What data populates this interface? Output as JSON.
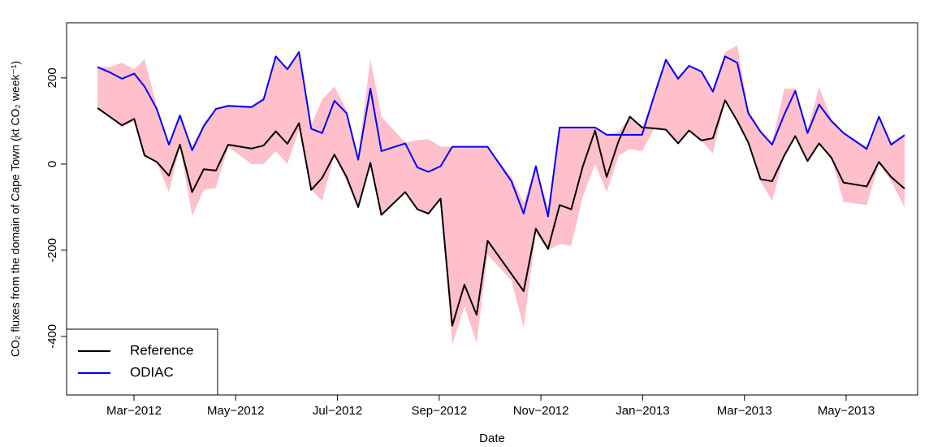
{
  "chart_data": {
    "type": "line",
    "xlabel": "Date",
    "ylabel": "CO₂ fluxes from the domain of Cape Town (kt CO₂ week⁻¹)",
    "x": [
      2012.107,
      2012.127,
      2012.147,
      2012.167,
      2012.184,
      2012.204,
      2012.224,
      2012.242,
      2012.262,
      2012.281,
      2012.301,
      2012.321,
      2012.359,
      2012.379,
      2012.399,
      2012.418,
      2012.437,
      2012.457,
      2012.475,
      2012.495,
      2012.515,
      2012.534,
      2012.554,
      2012.572,
      2012.611,
      2012.631,
      2012.649,
      2012.669,
      2012.688,
      2012.708,
      2012.728,
      2012.746,
      2012.785,
      2012.805,
      2012.825,
      2012.845,
      2012.864,
      2012.883,
      2012.902,
      2012.922,
      2012.941,
      2012.961,
      2012.979,
      2012.999,
      2013.018,
      2013.038,
      2013.058,
      2013.076,
      2013.096,
      2013.115,
      2013.135,
      2013.155,
      2013.173,
      2013.193,
      2013.212,
      2013.232,
      2013.25,
      2013.27,
      2013.289,
      2013.309,
      2013.329,
      2013.367,
      2013.387,
      2013.407,
      2013.429
    ],
    "series": [
      {
        "name": "Reference",
        "color": "#000000",
        "values": [
          130,
          110,
          90,
          105,
          20,
          5,
          -27,
          45,
          -65,
          -12,
          -15,
          45,
          36,
          43,
          76,
          47,
          95,
          -60,
          -32,
          22,
          -30,
          -100,
          3,
          -118,
          -65,
          -105,
          -115,
          -80,
          -375,
          -280,
          -350,
          -178,
          -255,
          -295,
          -150,
          -197,
          -95,
          -105,
          -5,
          78,
          -30,
          55,
          110,
          85,
          83,
          80,
          48,
          78,
          55,
          60,
          148,
          100,
          50,
          -35,
          -40,
          20,
          65,
          7,
          48,
          15,
          -43,
          -52,
          5,
          -30,
          -57
        ]
      },
      {
        "name": "ODIAC",
        "color": "#0000ff",
        "values": [
          225,
          213,
          198,
          210,
          180,
          128,
          45,
          113,
          32,
          88,
          128,
          135,
          132,
          150,
          250,
          220,
          260,
          82,
          72,
          147,
          118,
          10,
          175,
          30,
          48,
          -8,
          -18,
          -5,
          40,
          40,
          40,
          40,
          -40,
          -115,
          -5,
          -122,
          85,
          85,
          85,
          85,
          68,
          68,
          68,
          68,
          155,
          242,
          198,
          228,
          215,
          168,
          250,
          235,
          118,
          75,
          45,
          115,
          170,
          72,
          138,
          100,
          72,
          35,
          110,
          45,
          67
        ]
      }
    ],
    "band": {
      "color": "#ffc0cb",
      "upper": [
        225,
        225,
        235,
        220,
        243,
        135,
        50,
        113,
        40,
        95,
        130,
        138,
        135,
        155,
        250,
        225,
        260,
        90,
        150,
        180,
        125,
        20,
        243,
        110,
        50,
        55,
        58,
        40,
        40,
        40,
        40,
        40,
        -30,
        -90,
        -5,
        -100,
        85,
        85,
        85,
        85,
        68,
        75,
        110,
        85,
        160,
        245,
        205,
        230,
        215,
        175,
        260,
        275,
        125,
        80,
        50,
        175,
        175,
        80,
        178,
        105,
        75,
        40,
        110,
        50,
        70
      ],
      "lower": [
        130,
        110,
        85,
        100,
        20,
        5,
        -65,
        40,
        -120,
        -60,
        -55,
        40,
        0,
        0,
        30,
        0,
        80,
        -60,
        -85,
        22,
        -40,
        -100,
        0,
        -118,
        -65,
        -105,
        -115,
        -80,
        -420,
        -330,
        -415,
        -210,
        -270,
        -380,
        -160,
        -200,
        -185,
        -190,
        -75,
        0,
        -65,
        20,
        35,
        30,
        80,
        80,
        48,
        78,
        55,
        25,
        148,
        100,
        50,
        -40,
        -85,
        20,
        65,
        7,
        48,
        15,
        -88,
        -95,
        0,
        -40,
        -100
      ]
    },
    "xlim": [
      2012.0563,
      2013.4504
    ],
    "xticks": [
      {
        "value": 2012.1667,
        "label": "Mar−2012"
      },
      {
        "value": 2012.3333,
        "label": "May−2012"
      },
      {
        "value": 2012.5,
        "label": "Jul−2012"
      },
      {
        "value": 2012.6667,
        "label": "Sep−2012"
      },
      {
        "value": 2012.8333,
        "label": "Nov−2012"
      },
      {
        "value": 2013.0,
        "label": "Jan−2013"
      },
      {
        "value": 2013.1667,
        "label": "Mar−2013"
      },
      {
        "value": 2013.3333,
        "label": "May−2013"
      }
    ],
    "ylim": [
      -536,
      328
    ],
    "yticks": [
      -400,
      -200,
      0,
      200
    ],
    "legend": "bottom-left"
  }
}
